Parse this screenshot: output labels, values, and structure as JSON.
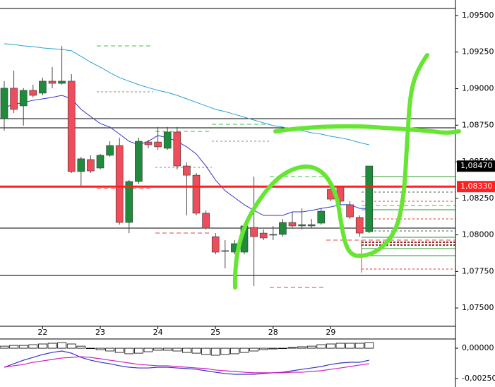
{
  "chart_data": [
    {
      "type": "candlestick",
      "categories": [
        null,
        null,
        null,
        null,
        "22",
        null,
        null,
        null,
        null,
        null,
        "23",
        null,
        null,
        null,
        null,
        null,
        "24",
        null,
        null,
        null,
        null,
        null,
        "25",
        null,
        null,
        null,
        null,
        null,
        "28",
        null,
        null,
        null,
        null,
        null,
        "29",
        null,
        null,
        null,
        null
      ],
      "open": [
        1.08795,
        1.09003,
        1.08882,
        1.08988,
        1.08969,
        1.09051,
        1.09036,
        1.09051,
        1.08433,
        1.08515,
        1.08457,
        1.08544,
        1.08611,
        1.08085,
        1.08365,
        1.08635,
        1.08635,
        1.08592,
        1.08703,
        1.08471,
        1.08408,
        1.08148,
        1.07988,
        1.07892,
        1.07882,
        1.07882,
        1.08051,
        1.08012,
        1.07998,
        1.08003,
        1.08085,
        1.08061,
        1.08061,
        1.0808,
        1.08312,
        1.08326,
        1.08206,
        1.08119,
        1.08022
      ],
      "high": [
        1.09051,
        1.09123,
        1.09003,
        1.09027,
        1.09075,
        1.09147,
        1.09292,
        1.09099,
        1.08534,
        1.08544,
        1.08553,
        1.0864,
        1.08664,
        1.08375,
        1.08664,
        1.0865,
        1.08737,
        1.08737,
        1.08737,
        1.08495,
        1.08423,
        1.08167,
        1.08012,
        1.07964,
        1.07964,
        1.0807,
        1.08399,
        1.08037,
        1.08061,
        1.08109,
        1.08157,
        1.08181,
        1.08109,
        1.08181,
        1.0836,
        1.08336,
        1.0823,
        1.08133,
        1.08471
      ],
      "low": [
        1.08713,
        1.08833,
        1.08747,
        1.0894,
        1.08954,
        1.09003,
        1.09027,
        1.08423,
        1.08336,
        1.08423,
        1.08447,
        1.08534,
        1.0807,
        1.08012,
        1.0835,
        1.08592,
        1.08582,
        1.08582,
        1.08447,
        1.08133,
        1.08133,
        1.08037,
        1.07867,
        1.07771,
        1.07867,
        1.07867,
        1.0765,
        1.07964,
        1.07964,
        1.07988,
        1.08051,
        1.08037,
        1.08046,
        1.0807,
        1.0823,
        1.08206,
        1.08109,
        1.07988,
        1.08012
      ],
      "close": [
        1.09003,
        1.08858,
        1.08988,
        1.08954,
        1.09051,
        1.09036,
        1.09051,
        1.08433,
        1.0852,
        1.08437,
        1.08544,
        1.08611,
        1.08085,
        1.08365,
        1.0864,
        1.08616,
        1.08602,
        1.08703,
        1.08471,
        1.08408,
        1.08148,
        1.08046,
        1.07882,
        1.07887,
        1.0794,
        1.08061,
        1.07988,
        1.07979,
        1.08003,
        1.08085,
        1.08061,
        1.0807,
        1.0807,
        1.08162,
        1.08244,
        1.0823,
        1.08123,
        1.08012,
        1.08471
      ],
      "up_color": "#1e8c3c",
      "down_color": "#ee4d5b",
      "overlays": [
        {
          "color": "#2a9fd6",
          "values": [
            1.09307,
            1.09302,
            1.09292,
            1.09287,
            1.09278,
            1.09273,
            1.09268,
            1.09259,
            1.0922,
            1.09181,
            1.09147,
            1.09109,
            1.09075,
            1.09051,
            1.09027,
            1.09007,
            1.08988,
            1.08974,
            1.08954,
            1.0893,
            1.08906,
            1.08882,
            1.08858,
            1.08843,
            1.08824,
            1.08805,
            1.08785,
            1.08766,
            1.08747,
            1.08737,
            1.08722,
            1.08713,
            1.08698,
            1.08689,
            1.08674,
            1.08664,
            1.0865,
            1.08631,
            1.08616
          ]
        },
        {
          "color": "#3434c8",
          "values": [
            1.08872,
            1.08891,
            1.08906,
            1.0892,
            1.0893,
            1.0894,
            1.08954,
            1.0893,
            1.08858,
            1.08809,
            1.08761,
            1.08737,
            1.08689,
            1.0864,
            1.08616,
            1.0864,
            1.08679,
            1.08664,
            1.0864,
            1.08602,
            1.08553,
            1.08471,
            1.08375,
            1.08302,
            1.08254,
            1.08206,
            1.08167,
            1.08133,
            1.08133,
            1.08133,
            1.08157,
            1.08157,
            1.08167,
            1.08181,
            1.08191,
            1.08206,
            1.08206,
            1.08181,
            1.08181
          ]
        }
      ],
      "levels": [
        1.09548,
        1.08795,
        1.08732,
        1.08046,
        1.07722
      ],
      "level_color": "#000000",
      "price_labels": [
        {
          "value": 1.0847,
          "label": "1,08470",
          "color": "#000000"
        },
        {
          "value": 1.0833,
          "label": "1,08330",
          "color": "#ff2020"
        }
      ],
      "ylim": [
        1.07375,
        1.09606
      ],
      "yticks": [
        {
          "value": 1.095,
          "label": "1,09500"
        },
        {
          "value": 1.0925,
          "label": "1,09250"
        },
        {
          "value": 1.09,
          "label": "1,09000"
        },
        {
          "value": 1.0875,
          "label": "1,08750"
        },
        {
          "value": 1.085,
          "label": "1,08500"
        },
        {
          "value": 1.0825,
          "label": "1,08250"
        },
        {
          "value": 1.08,
          "label": "1,08000"
        },
        {
          "value": 1.0775,
          "label": "1,07750"
        },
        {
          "value": 1.075,
          "label": "1,07500"
        }
      ]
    },
    {
      "type": "bar",
      "values": [
        0.00017,
        0.00023,
        0.00023,
        0.00029,
        0.00035,
        0.00041,
        0.00046,
        0.00035,
        0.00017,
        0,
        -0.00012,
        -0.00023,
        -0.00035,
        -0.00046,
        -0.00041,
        -0.00029,
        -0.00017,
        -0.00017,
        -0.00023,
        -0.00035,
        -0.00041,
        -0.00052,
        -0.00058,
        -0.00052,
        -0.00046,
        -0.00035,
        -0.00023,
        -0.00012,
        -6e-05,
        0,
        6e-05,
        0.00012,
        0.00017,
        0.00029,
        0.00035,
        0.00041,
        0.00041,
        0.00041,
        0.00046
      ],
      "lines": [
        {
          "color": "#3434c8",
          "values": [
            -0.00157,
            -0.00128,
            -0.00099,
            -0.00076,
            -0.00052,
            -0.00035,
            -0.00023,
            -0.00041,
            -0.00076,
            -0.00099,
            -0.00116,
            -0.00128,
            -0.00145,
            -0.00157,
            -0.00163,
            -0.00163,
            -0.00157,
            -0.00157,
            -0.00163,
            -0.00168,
            -0.00174,
            -0.00186,
            -0.00198,
            -0.00209,
            -0.00215,
            -0.00215,
            -0.00215,
            -0.00209,
            -0.00203,
            -0.00198,
            -0.00186,
            -0.00174,
            -0.00163,
            -0.00151,
            -0.00134,
            -0.00122,
            -0.00116,
            -0.00116,
            -0.00099
          ]
        },
        {
          "color": "#d020c0",
          "values": [
            -0.00157,
            -0.00145,
            -0.00134,
            -0.00116,
            -0.00105,
            -0.00093,
            -0.00081,
            -0.00076,
            -0.0007,
            -0.00076,
            -0.00087,
            -0.00099,
            -0.0011,
            -0.00122,
            -0.00134,
            -0.00139,
            -0.00145,
            -0.00145,
            -0.00151,
            -0.00157,
            -0.00163,
            -0.00168,
            -0.0018,
            -0.00186,
            -0.00192,
            -0.00198,
            -0.00203,
            -0.00203,
            -0.00203,
            -0.00203,
            -0.00198,
            -0.00198,
            -0.00192,
            -0.00186,
            -0.00174,
            -0.00163,
            -0.00151,
            -0.00139,
            -0.00128
          ]
        }
      ],
      "ylim": [
        -0.0032,
        0.00076
      ],
      "yticks": [
        {
          "value": 0,
          "label": "0,00000"
        },
        {
          "value": -0.0025,
          "label": "-0,00250"
        }
      ]
    }
  ]
}
